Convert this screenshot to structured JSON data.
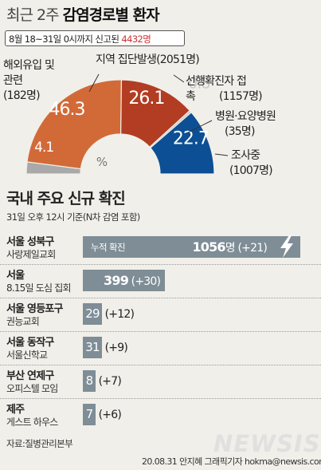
{
  "title": {
    "light": "최근 2주 ",
    "bold": "감염경로별 환자"
  },
  "subtitle": {
    "text": "8월 18~31일 0시까지 신고된 ",
    "total": "4432",
    "unit": "명"
  },
  "chart_data": [
    {
      "type": "pie",
      "style": "half-donut",
      "slices": [
        {
          "label": "해외유입 및 관련",
          "value": 4.1,
          "count_text": "(182명)",
          "value_label": "4.1",
          "color": "#a9a9a9"
        },
        {
          "label": "지역 집단발생",
          "value": 46.3,
          "count_text": "(2051명)",
          "value_label": "46.3",
          "color": "#d26a38"
        },
        {
          "label": "선행확진자 접촉",
          "value": 26.1,
          "count_text": "(1157명)",
          "value_label": "26.1",
          "color": "#b23d22"
        },
        {
          "label": "병원·요양병원",
          "value": 0.8,
          "count_text": "(35명)",
          "value_label": "0.8",
          "color": "#c7c7c7"
        },
        {
          "label": "조사중",
          "value": 22.7,
          "count_text": "(1007명)",
          "value_label": "22.7",
          "color": "#0c4f95"
        }
      ],
      "center_label": "%"
    },
    {
      "type": "bar",
      "orientation": "horizontal",
      "title": "국내 주요 신규 확진",
      "subtitle": "31일 오후 12시 기준(N차 감염 포함)",
      "bar_color": "#7e8d96",
      "xlim": [
        0,
        1056
      ],
      "series": [
        {
          "name": "누적 확진",
          "values": [
            1056,
            399,
            29,
            31,
            8,
            7
          ]
        }
      ],
      "rows": [
        {
          "region": "서울 성북구",
          "place": "사랑제일교회",
          "value": 1056,
          "value_text": "1056",
          "unit": "명",
          "increase_text": "(+21)"
        },
        {
          "region": "서울",
          "place": "8.15일 도심 집회",
          "value": 399,
          "value_text": "399",
          "unit": "",
          "increase_text": "(+30)"
        },
        {
          "region": "서울 영등포구",
          "place": "권능교회",
          "value": 29,
          "value_text": "29",
          "unit": "",
          "increase_text": "(+12)"
        },
        {
          "region": "서울 동작구",
          "place": "서울신학교",
          "value": 31,
          "value_text": "31",
          "unit": "",
          "increase_text": "(+9)"
        },
        {
          "region": "부산 연제구",
          "place": "오피스텔 모임",
          "value": 8,
          "value_text": "8",
          "unit": "",
          "increase_text": "(+7)"
        },
        {
          "region": "제주",
          "place": "게스트 하우스",
          "value": 7,
          "value_text": "7",
          "unit": "",
          "increase_text": "(+6)"
        }
      ],
      "cumulative_label": "누적 확진",
      "cumulative_icon": "lightning-icon"
    }
  ],
  "source": "자료:질병관리본부",
  "credit": "20.08.31 안지혜 그래픽기자 hokma@newsis.com",
  "watermark": "NEWSIS"
}
